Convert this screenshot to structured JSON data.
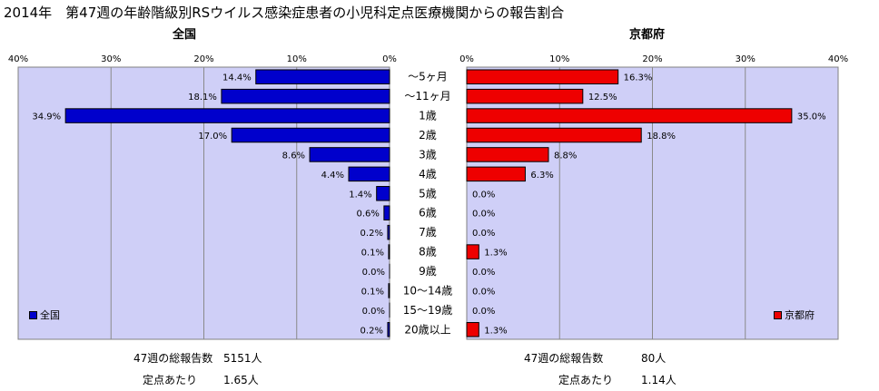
{
  "title": "2014年　第47週の年齢階級別RSウイルス感染症患者の小児科定点医療機関からの報告割合",
  "categories": [
    "～5ヶ月",
    "～11ヶ月",
    "1歳",
    "2歳",
    "3歳",
    "4歳",
    "5歳",
    "6歳",
    "7歳",
    "8歳",
    "9歳",
    "10～14歳",
    "15～19歳",
    "20歳以上"
  ],
  "chart_data": [
    {
      "type": "bar",
      "orientation": "horizontal",
      "direction": "leftward",
      "title": "全国",
      "categories": [
        "～5ヶ月",
        "～11ヶ月",
        "1歳",
        "2歳",
        "3歳",
        "4歳",
        "5歳",
        "6歳",
        "7歳",
        "8歳",
        "9歳",
        "10～14歳",
        "15～19歳",
        "20歳以上"
      ],
      "series": [
        {
          "name": "全国",
          "values": [
            14.4,
            18.1,
            34.9,
            17.0,
            8.6,
            4.4,
            1.4,
            0.6,
            0.2,
            0.1,
            0.0,
            0.1,
            0.0,
            0.2
          ]
        }
      ],
      "labels": [
        "14.4%",
        "18.1%",
        "34.9%",
        "17.0%",
        "8.6%",
        "4.4%",
        "1.4%",
        "0.6%",
        "0.2%",
        "0.1%",
        "0.0%",
        "0.1%",
        "0.0%",
        "0.2%"
      ],
      "xlim": [
        0,
        40
      ],
      "tick_labels": [
        "40%",
        "30%",
        "20%",
        "10%",
        "0%"
      ],
      "color": "#0000cc",
      "grid": true,
      "legend_position": "bottom-left"
    },
    {
      "type": "bar",
      "orientation": "horizontal",
      "direction": "rightward",
      "title": "京都府",
      "categories": [
        "～5ヶ月",
        "～11ヶ月",
        "1歳",
        "2歳",
        "3歳",
        "4歳",
        "5歳",
        "6歳",
        "7歳",
        "8歳",
        "9歳",
        "10～14歳",
        "15～19歳",
        "20歳以上"
      ],
      "series": [
        {
          "name": "京都府",
          "values": [
            16.3,
            12.5,
            35.0,
            18.8,
            8.8,
            6.3,
            0.0,
            0.0,
            0.0,
            1.3,
            0.0,
            0.0,
            0.0,
            1.3
          ]
        }
      ],
      "labels": [
        "16.3%",
        "12.5%",
        "35.0%",
        "18.8%",
        "8.8%",
        "6.3%",
        "0.0%",
        "0.0%",
        "0.0%",
        "1.3%",
        "0.0%",
        "0.0%",
        "0.0%",
        "1.3%"
      ],
      "xlim": [
        0,
        40
      ],
      "tick_labels": [
        "0%",
        "10%",
        "20%",
        "30%",
        "40%"
      ],
      "color": "#ee0000",
      "grid": true,
      "legend_position": "bottom-right"
    }
  ],
  "stats": {
    "left": {
      "row1_label": "47週の総報告数",
      "row1_value": "5151人",
      "row2_label": "定点あたり",
      "row2_value": "1.65人"
    },
    "right": {
      "row1_label": "47週の総報告数",
      "row1_value": "80人",
      "row2_label": "定点あたり",
      "row2_value": "1.14人"
    }
  }
}
